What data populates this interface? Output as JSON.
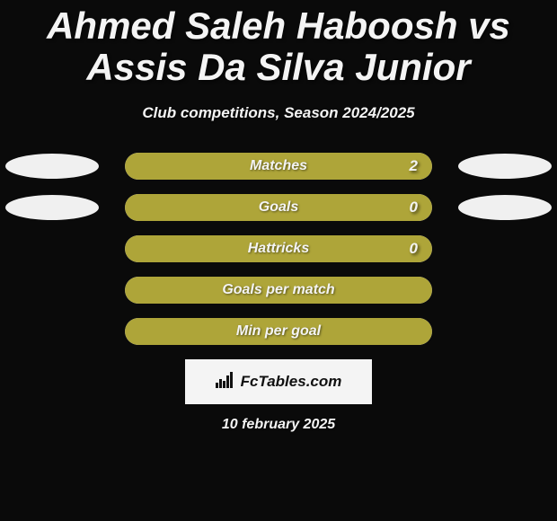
{
  "colors": {
    "background": "#0a0a0a",
    "title_text": "#f4f4f4",
    "subtitle_text": "#f4f4f4",
    "oval_light": "#f0f0f0",
    "bar_track": "#bfc0c4",
    "bar_fill": "#aea539",
    "bar_text": "#f4f4f4",
    "bar_value_text": "#f4f4f4",
    "logo_bg": "#f4f4f4",
    "logo_text": "#111111",
    "date_text": "#f4f4f4"
  },
  "title": {
    "text": "Ahmed Saleh Haboosh vs Assis Da Silva Junior",
    "fontsize": 42
  },
  "subtitle": {
    "text": "Club competitions, Season 2024/2025",
    "fontsize": 17
  },
  "stats": {
    "label_fontsize": 16,
    "value_fontsize": 17,
    "rows": [
      {
        "label": "Matches",
        "value": "2",
        "fill_pct": 100,
        "show_value": true,
        "show_left_oval": true,
        "show_right_oval": true
      },
      {
        "label": "Goals",
        "value": "0",
        "fill_pct": 100,
        "show_value": true,
        "show_left_oval": true,
        "show_right_oval": true
      },
      {
        "label": "Hattricks",
        "value": "0",
        "fill_pct": 100,
        "show_value": true,
        "show_left_oval": false,
        "show_right_oval": false
      },
      {
        "label": "Goals per match",
        "value": "",
        "fill_pct": 100,
        "show_value": false,
        "show_left_oval": false,
        "show_right_oval": false
      },
      {
        "label": "Min per goal",
        "value": "",
        "fill_pct": 100,
        "show_value": false,
        "show_left_oval": false,
        "show_right_oval": false
      }
    ]
  },
  "logo": {
    "text": "FcTables.com",
    "fontsize": 17
  },
  "date": {
    "text": "10 february 2025",
    "fontsize": 16
  }
}
